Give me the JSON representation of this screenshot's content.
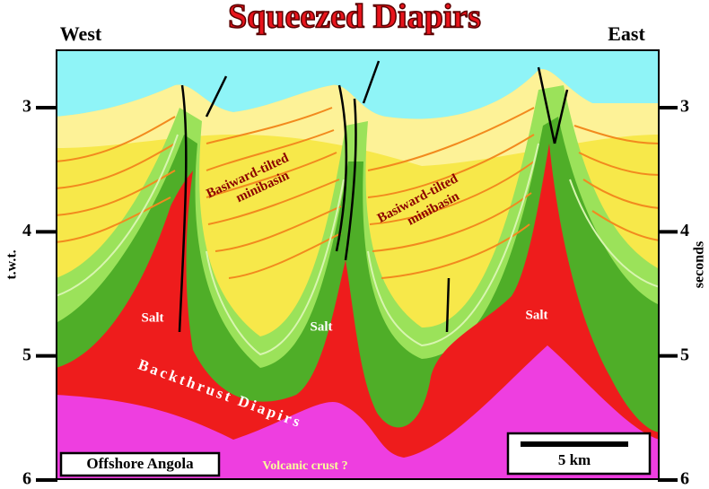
{
  "title": "Squeezed Diapirs",
  "west": "West",
  "east": "East",
  "axis": {
    "left_label": "t.w.t.",
    "right_label": "seconds",
    "ylim": [
      2.53,
      6
    ],
    "ticks": [
      3,
      4,
      5,
      6
    ]
  },
  "labels": {
    "salt": [
      "Salt",
      "Salt",
      "Salt"
    ],
    "minibasins": [
      [
        "Basiward-tilted",
        "minibasin"
      ],
      [
        "Basiward-tilted",
        "minibasin"
      ]
    ],
    "backthrust": "Backthrust Diapirs",
    "crust": "Volcanic crust ?",
    "location": "Offshore Angola",
    "scale": "5 km"
  }
}
